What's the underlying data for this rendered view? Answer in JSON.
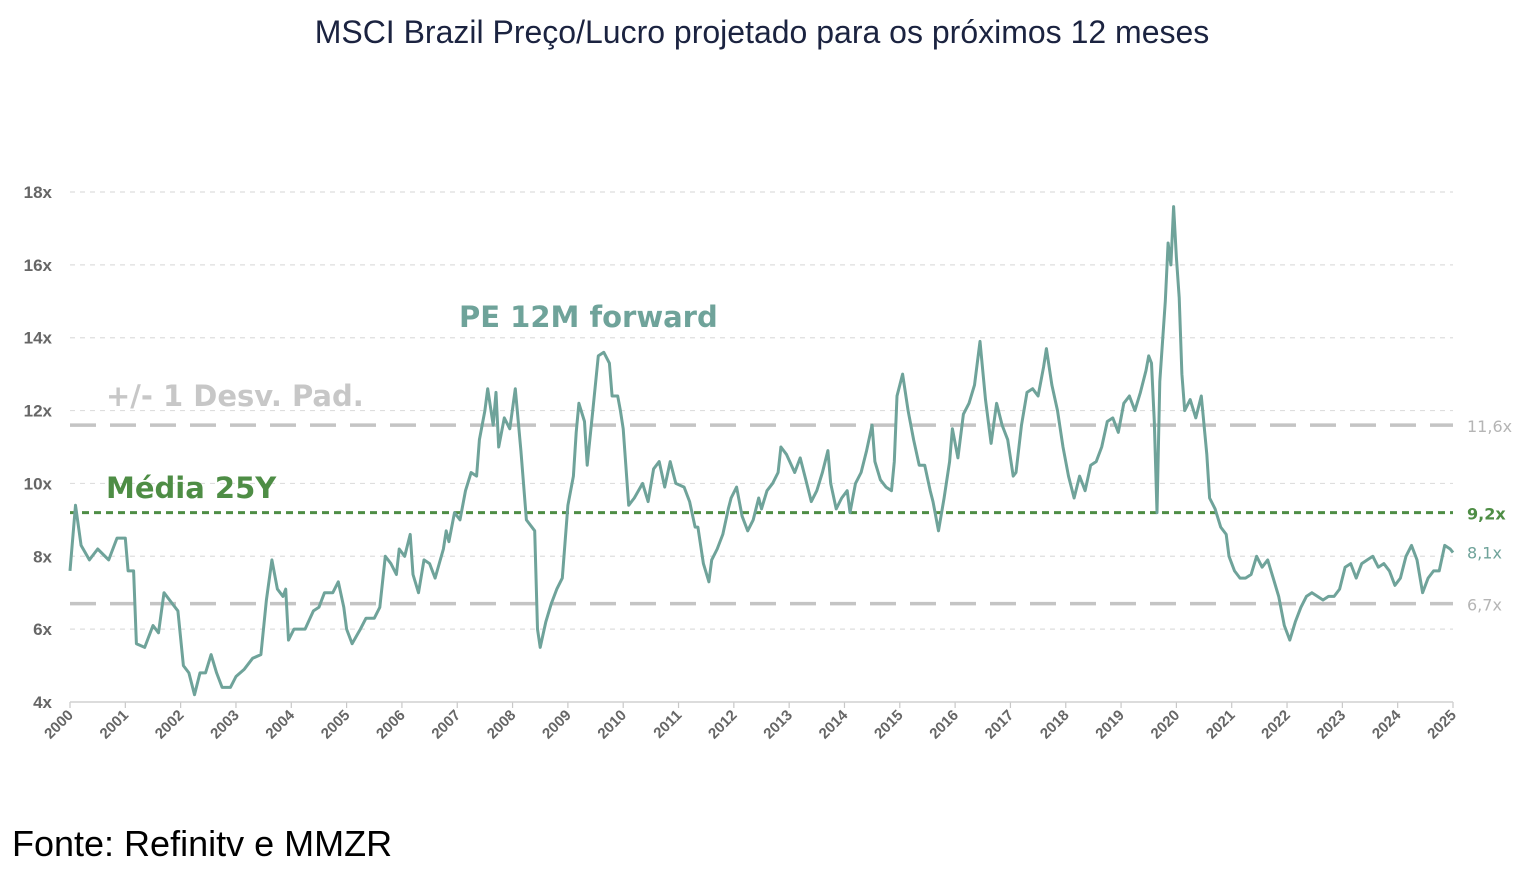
{
  "title": "MSCI Brazil Preço/Lucro projetado para os próximos 12 meses",
  "source": "Fonte: Refinitv e MMZR",
  "chart_data": {
    "type": "line",
    "xlim": [
      2000,
      2025
    ],
    "ylim": [
      4,
      18
    ],
    "grid": true,
    "x_ticks": [
      "2000",
      "2001",
      "2002",
      "2003",
      "2004",
      "2005",
      "2006",
      "2007",
      "2008",
      "2009",
      "2010",
      "2011",
      "2012",
      "2013",
      "2014",
      "2015",
      "2016",
      "2017",
      "2018",
      "2019",
      "2020",
      "2021",
      "2022",
      "2023",
      "2024",
      "2025"
    ],
    "y_ticks": [
      {
        "value": 18,
        "label": "18x"
      },
      {
        "value": 16,
        "label": "16x"
      },
      {
        "value": 14,
        "label": "14x"
      },
      {
        "value": 12,
        "label": "12x"
      },
      {
        "value": 10,
        "label": "10x"
      },
      {
        "value": 8,
        "label": "8x"
      },
      {
        "value": 6,
        "label": "6x"
      },
      {
        "value": 4,
        "label": "4x"
      }
    ],
    "annotations": {
      "series_label": "PE 12M forward",
      "sd_label": "+/- 1 Desv. Pad.",
      "mean_label": "Média 25Y"
    },
    "reference_lines": [
      {
        "id": "upper",
        "value": 11.6,
        "label": "11,6x",
        "style": "dashed",
        "color": "#c4c4c4"
      },
      {
        "id": "mean",
        "value": 9.2,
        "label": "9,2x",
        "style": "dashed",
        "color": "#4e8d45"
      },
      {
        "id": "lower",
        "value": 6.7,
        "label": "6,7x",
        "style": "dashed",
        "color": "#c4c4c4"
      }
    ],
    "last_value_label": {
      "value": 8.1,
      "label": "8,1x",
      "color": "#6fa39a"
    },
    "series": [
      {
        "color": "#6fa39a",
        "points": [
          [
            2000.0,
            7.6
          ],
          [
            2000.1,
            9.4
          ],
          [
            2000.2,
            8.3
          ],
          [
            2000.35,
            7.9
          ],
          [
            2000.5,
            8.2
          ],
          [
            2000.7,
            7.9
          ],
          [
            2000.85,
            8.5
          ],
          [
            2001.0,
            8.5
          ],
          [
            2001.05,
            7.6
          ],
          [
            2001.15,
            7.6
          ],
          [
            2001.2,
            5.6
          ],
          [
            2001.35,
            5.5
          ],
          [
            2001.5,
            6.1
          ],
          [
            2001.6,
            5.9
          ],
          [
            2001.7,
            7.0
          ],
          [
            2001.85,
            6.7
          ],
          [
            2001.95,
            6.5
          ],
          [
            2002.05,
            5.0
          ],
          [
            2002.15,
            4.8
          ],
          [
            2002.25,
            4.2
          ],
          [
            2002.35,
            4.8
          ],
          [
            2002.45,
            4.8
          ],
          [
            2002.55,
            5.3
          ],
          [
            2002.65,
            4.8
          ],
          [
            2002.75,
            4.4
          ],
          [
            2002.9,
            4.4
          ],
          [
            2003.0,
            4.7
          ],
          [
            2003.15,
            4.9
          ],
          [
            2003.3,
            5.2
          ],
          [
            2003.45,
            5.3
          ],
          [
            2003.55,
            6.8
          ],
          [
            2003.65,
            7.9
          ],
          [
            2003.75,
            7.1
          ],
          [
            2003.85,
            6.9
          ],
          [
            2003.9,
            7.1
          ],
          [
            2003.95,
            5.7
          ],
          [
            2004.05,
            6.0
          ],
          [
            2004.25,
            6.0
          ],
          [
            2004.4,
            6.5
          ],
          [
            2004.5,
            6.6
          ],
          [
            2004.6,
            7.0
          ],
          [
            2004.75,
            7.0
          ],
          [
            2004.85,
            7.3
          ],
          [
            2004.95,
            6.6
          ],
          [
            2005.0,
            6.0
          ],
          [
            2005.1,
            5.6
          ],
          [
            2005.25,
            6.0
          ],
          [
            2005.35,
            6.3
          ],
          [
            2005.5,
            6.3
          ],
          [
            2005.6,
            6.6
          ],
          [
            2005.7,
            8.0
          ],
          [
            2005.8,
            7.8
          ],
          [
            2005.9,
            7.5
          ],
          [
            2005.95,
            8.2
          ],
          [
            2006.05,
            8.0
          ],
          [
            2006.15,
            8.6
          ],
          [
            2006.2,
            7.5
          ],
          [
            2006.3,
            7.0
          ],
          [
            2006.4,
            7.9
          ],
          [
            2006.5,
            7.8
          ],
          [
            2006.6,
            7.4
          ],
          [
            2006.75,
            8.2
          ],
          [
            2006.8,
            8.7
          ],
          [
            2006.85,
            8.4
          ],
          [
            2006.95,
            9.2
          ],
          [
            2007.05,
            9.0
          ],
          [
            2007.15,
            9.8
          ],
          [
            2007.25,
            10.3
          ],
          [
            2007.35,
            10.2
          ],
          [
            2007.4,
            11.2
          ],
          [
            2007.5,
            12.0
          ],
          [
            2007.55,
            12.6
          ],
          [
            2007.65,
            11.6
          ],
          [
            2007.7,
            12.5
          ],
          [
            2007.75,
            11.0
          ],
          [
            2007.85,
            11.8
          ],
          [
            2007.95,
            11.5
          ],
          [
            2008.05,
            12.6
          ],
          [
            2008.15,
            10.9
          ],
          [
            2008.25,
            9.0
          ],
          [
            2008.4,
            8.7
          ],
          [
            2008.45,
            6.0
          ],
          [
            2008.5,
            5.5
          ],
          [
            2008.6,
            6.2
          ],
          [
            2008.7,
            6.7
          ],
          [
            2008.8,
            7.1
          ],
          [
            2008.9,
            7.4
          ],
          [
            2009.0,
            9.4
          ],
          [
            2009.1,
            10.2
          ],
          [
            2009.15,
            11.4
          ],
          [
            2009.2,
            12.2
          ],
          [
            2009.3,
            11.7
          ],
          [
            2009.35,
            10.5
          ],
          [
            2009.45,
            12.0
          ],
          [
            2009.55,
            13.5
          ],
          [
            2009.65,
            13.6
          ],
          [
            2009.75,
            13.3
          ],
          [
            2009.8,
            12.4
          ],
          [
            2009.9,
            12.4
          ],
          [
            2009.95,
            12.0
          ],
          [
            2010.0,
            11.5
          ],
          [
            2010.1,
            9.4
          ],
          [
            2010.2,
            9.6
          ],
          [
            2010.35,
            10.0
          ],
          [
            2010.45,
            9.5
          ],
          [
            2010.55,
            10.4
          ],
          [
            2010.65,
            10.6
          ],
          [
            2010.75,
            9.9
          ],
          [
            2010.85,
            10.6
          ],
          [
            2010.95,
            10.0
          ],
          [
            2011.1,
            9.9
          ],
          [
            2011.2,
            9.5
          ],
          [
            2011.3,
            8.8
          ],
          [
            2011.35,
            8.8
          ],
          [
            2011.45,
            7.8
          ],
          [
            2011.55,
            7.3
          ],
          [
            2011.6,
            7.9
          ],
          [
            2011.7,
            8.2
          ],
          [
            2011.8,
            8.6
          ],
          [
            2011.9,
            9.3
          ],
          [
            2011.95,
            9.6
          ],
          [
            2012.05,
            9.9
          ],
          [
            2012.15,
            9.1
          ],
          [
            2012.25,
            8.7
          ],
          [
            2012.35,
            9.0
          ],
          [
            2012.45,
            9.6
          ],
          [
            2012.5,
            9.3
          ],
          [
            2012.6,
            9.8
          ],
          [
            2012.7,
            10.0
          ],
          [
            2012.8,
            10.3
          ],
          [
            2012.85,
            11.0
          ],
          [
            2012.95,
            10.8
          ],
          [
            2013.1,
            10.3
          ],
          [
            2013.2,
            10.7
          ],
          [
            2013.3,
            10.1
          ],
          [
            2013.4,
            9.5
          ],
          [
            2013.5,
            9.8
          ],
          [
            2013.6,
            10.3
          ],
          [
            2013.7,
            10.9
          ],
          [
            2013.75,
            10.0
          ],
          [
            2013.85,
            9.3
          ],
          [
            2013.95,
            9.6
          ],
          [
            2014.05,
            9.8
          ],
          [
            2014.1,
            9.2
          ],
          [
            2014.2,
            10.0
          ],
          [
            2014.3,
            10.3
          ],
          [
            2014.4,
            10.9
          ],
          [
            2014.5,
            11.6
          ],
          [
            2014.55,
            10.6
          ],
          [
            2014.65,
            10.1
          ],
          [
            2014.75,
            9.9
          ],
          [
            2014.85,
            9.8
          ],
          [
            2014.9,
            10.6
          ],
          [
            2014.95,
            12.4
          ],
          [
            2015.05,
            13.0
          ],
          [
            2015.15,
            12.0
          ],
          [
            2015.25,
            11.2
          ],
          [
            2015.35,
            10.5
          ],
          [
            2015.45,
            10.5
          ],
          [
            2015.55,
            9.8
          ],
          [
            2015.6,
            9.5
          ],
          [
            2015.7,
            8.7
          ],
          [
            2015.8,
            9.6
          ],
          [
            2015.9,
            10.6
          ],
          [
            2015.95,
            11.5
          ],
          [
            2016.05,
            10.7
          ],
          [
            2016.15,
            11.9
          ],
          [
            2016.25,
            12.2
          ],
          [
            2016.35,
            12.7
          ],
          [
            2016.45,
            13.9
          ],
          [
            2016.55,
            12.3
          ],
          [
            2016.65,
            11.1
          ],
          [
            2016.75,
            12.2
          ],
          [
            2016.85,
            11.6
          ],
          [
            2016.95,
            11.2
          ],
          [
            2017.05,
            10.2
          ],
          [
            2017.1,
            10.3
          ],
          [
            2017.2,
            11.6
          ],
          [
            2017.3,
            12.5
          ],
          [
            2017.4,
            12.6
          ],
          [
            2017.5,
            12.4
          ],
          [
            2017.6,
            13.2
          ],
          [
            2017.65,
            13.7
          ],
          [
            2017.75,
            12.7
          ],
          [
            2017.85,
            12.0
          ],
          [
            2017.95,
            11.0
          ],
          [
            2018.05,
            10.2
          ],
          [
            2018.15,
            9.6
          ],
          [
            2018.25,
            10.2
          ],
          [
            2018.35,
            9.8
          ],
          [
            2018.45,
            10.5
          ],
          [
            2018.55,
            10.6
          ],
          [
            2018.65,
            11.0
          ],
          [
            2018.75,
            11.7
          ],
          [
            2018.85,
            11.8
          ],
          [
            2018.95,
            11.4
          ],
          [
            2019.05,
            12.2
          ],
          [
            2019.15,
            12.4
          ],
          [
            2019.25,
            12.0
          ],
          [
            2019.35,
            12.5
          ],
          [
            2019.45,
            13.1
          ],
          [
            2019.5,
            13.5
          ],
          [
            2019.55,
            13.3
          ],
          [
            2019.6,
            11.7
          ],
          [
            2019.65,
            9.2
          ],
          [
            2019.7,
            12.8
          ],
          [
            2019.8,
            15.0
          ],
          [
            2019.85,
            16.6
          ],
          [
            2019.9,
            16.0
          ],
          [
            2019.95,
            17.6
          ],
          [
            2020.0,
            16.2
          ],
          [
            2020.05,
            15.1
          ],
          [
            2020.1,
            13.0
          ],
          [
            2020.15,
            12.0
          ],
          [
            2020.25,
            12.3
          ],
          [
            2020.35,
            11.8
          ],
          [
            2020.45,
            12.4
          ],
          [
            2020.55,
            10.8
          ],
          [
            2020.6,
            9.6
          ],
          [
            2020.7,
            9.3
          ],
          [
            2020.8,
            8.8
          ],
          [
            2020.9,
            8.6
          ],
          [
            2020.95,
            8.0
          ],
          [
            2021.05,
            7.6
          ],
          [
            2021.15,
            7.4
          ],
          [
            2021.25,
            7.4
          ],
          [
            2021.35,
            7.5
          ],
          [
            2021.45,
            8.0
          ],
          [
            2021.55,
            7.7
          ],
          [
            2021.65,
            7.9
          ],
          [
            2021.75,
            7.4
          ],
          [
            2021.85,
            6.9
          ],
          [
            2021.95,
            6.1
          ],
          [
            2022.05,
            5.7
          ],
          [
            2022.15,
            6.2
          ],
          [
            2022.25,
            6.6
          ],
          [
            2022.35,
            6.9
          ],
          [
            2022.45,
            7.0
          ],
          [
            2022.55,
            6.9
          ],
          [
            2022.65,
            6.8
          ],
          [
            2022.75,
            6.9
          ],
          [
            2022.85,
            6.9
          ],
          [
            2022.95,
            7.1
          ],
          [
            2023.05,
            7.7
          ],
          [
            2023.15,
            7.8
          ],
          [
            2023.25,
            7.4
          ],
          [
            2023.35,
            7.8
          ],
          [
            2023.45,
            7.9
          ],
          [
            2023.55,
            8.0
          ],
          [
            2023.65,
            7.7
          ],
          [
            2023.75,
            7.8
          ],
          [
            2023.85,
            7.6
          ],
          [
            2023.95,
            7.2
          ],
          [
            2024.05,
            7.4
          ],
          [
            2024.15,
            8.0
          ],
          [
            2024.25,
            8.3
          ],
          [
            2024.35,
            7.9
          ],
          [
            2024.45,
            7.0
          ],
          [
            2024.55,
            7.4
          ],
          [
            2024.65,
            7.6
          ],
          [
            2024.75,
            7.6
          ],
          [
            2024.85,
            8.3
          ],
          [
            2024.95,
            8.2
          ],
          [
            2025.0,
            8.1
          ]
        ]
      }
    ]
  }
}
